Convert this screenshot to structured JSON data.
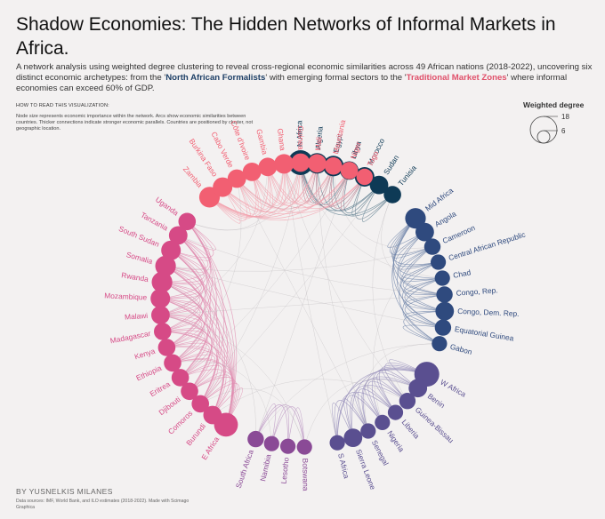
{
  "header": {
    "title": "Shadow Economies: The Hidden Networks of Informal Markets in Africa.",
    "subtitle_pre": "A network analysis using weighted degree clustering to reveal cross-regional economic similarities across 49 African nations (2018-2022), uncovering six distinct economic archetypes: from the '",
    "highlight_1": "North African Formalists",
    "subtitle_mid": "' with emerging formal sectors to the '",
    "highlight_2": "Traditional Market Zones",
    "subtitle_post": "' where informal economies can exceed 60% of GDP."
  },
  "how_to": {
    "title": "HOW TO READ THIS VISUALIZATION:",
    "text": "Node size represents economic importance within the network. Arcs show economic similarities between countries. Thicker connections indicate stronger economic parallels. Countries are positioned by cluster, not geographic location."
  },
  "legend": {
    "title": "Weighted degree",
    "large_label": "18",
    "small_label": "6",
    "large_value": 18,
    "small_value": 6
  },
  "footer": {
    "credit": "BY YUSNELKIS MILANES",
    "source": "Data sources: IMF, World Bank, and ILO estimates (2018-2022). Made with Scimago Graphica"
  },
  "chart_data": {
    "type": "network",
    "layout": "circular",
    "clusters": [
      {
        "color": "#0e3a56",
        "link_color": "#4f7385",
        "nodes": [
          {
            "label": "N Africa",
            "weight": 18
          },
          {
            "label": "Algeria",
            "weight": 14
          },
          {
            "label": "Egypt",
            "weight": 14
          },
          {
            "label": "Libya",
            "weight": 12
          },
          {
            "label": "Morocco",
            "weight": 13
          },
          {
            "label": "Sudan",
            "weight": 12
          },
          {
            "label": "Tunisia",
            "weight": 11
          }
        ]
      },
      {
        "color": "#2f4a7e",
        "link_color": "#6e83a8",
        "nodes": [
          {
            "label": "Mid Africa",
            "weight": 14
          },
          {
            "label": "Angola",
            "weight": 12
          },
          {
            "label": "Cameroon",
            "weight": 10
          },
          {
            "label": "Central African Republic",
            "weight": 9
          },
          {
            "label": "Chad",
            "weight": 9
          },
          {
            "label": "Congo, Rep.",
            "weight": 10
          },
          {
            "label": "Congo, Dem. Rep.",
            "weight": 12
          },
          {
            "label": "Equatorial Guinea",
            "weight": 10
          },
          {
            "label": "Gabon",
            "weight": 9
          }
        ]
      },
      {
        "color": "#5a4f90",
        "link_color": "#938bb8",
        "nodes": [
          {
            "label": "W Africa",
            "weight": 18
          },
          {
            "label": "Benin",
            "weight": 12
          },
          {
            "label": "Guinea-Bissau",
            "weight": 10
          },
          {
            "label": "Liberia",
            "weight": 9
          },
          {
            "label": "Nigeria",
            "weight": 9
          },
          {
            "label": "Senegal",
            "weight": 9
          },
          {
            "label": "Sierra Leone",
            "weight": 12
          },
          {
            "label": "S Africa",
            "weight": 9
          }
        ]
      },
      {
        "color": "#8a4a96",
        "link_color": "#b892c0",
        "nodes": [
          {
            "label": "Botswana",
            "weight": 9
          },
          {
            "label": "Lesotho",
            "weight": 9
          },
          {
            "label": "Namibia",
            "weight": 9
          },
          {
            "label": "South Africa",
            "weight": 10
          }
        ]
      },
      {
        "color": "#d64a86",
        "link_color": "#e08cb0",
        "nodes": [
          {
            "label": "E Africa",
            "weight": 17
          },
          {
            "label": "Burundi",
            "weight": 12
          },
          {
            "label": "Comoros",
            "weight": 11
          },
          {
            "label": "Djibouti",
            "weight": 11
          },
          {
            "label": "Eritrea",
            "weight": 11
          },
          {
            "label": "Ethiopia",
            "weight": 11
          },
          {
            "label": "Kenya",
            "weight": 11
          },
          {
            "label": "Madagascar",
            "weight": 11
          },
          {
            "label": "Malawi",
            "weight": 12
          },
          {
            "label": "Mozambique",
            "weight": 13
          },
          {
            "label": "Rwanda",
            "weight": 14
          },
          {
            "label": "Somalia",
            "weight": 14
          },
          {
            "label": "South Sudan",
            "weight": 13
          },
          {
            "label": "Tanzania",
            "weight": 12
          },
          {
            "label": "Uganda",
            "weight": 11
          }
        ]
      },
      {
        "color": "#f25f72",
        "link_color": "#f3a2ad",
        "nodes": [
          {
            "label": "Zambia",
            "weight": 14
          },
          {
            "label": "Burkina Faso",
            "weight": 13
          },
          {
            "label": "Cabo Verde",
            "weight": 12
          },
          {
            "label": "Côte d'Ivoire",
            "weight": 12
          },
          {
            "label": "Gambia",
            "weight": 12
          },
          {
            "label": "Ghana",
            "weight": 13
          },
          {
            "label": "Guinea",
            "weight": 12
          },
          {
            "label": "Mali",
            "weight": 12
          },
          {
            "label": "Mauritania",
            "weight": 11
          },
          {
            "label": "Niger",
            "weight": 11
          },
          {
            "label": "Togo",
            "weight": 10
          }
        ]
      }
    ]
  }
}
